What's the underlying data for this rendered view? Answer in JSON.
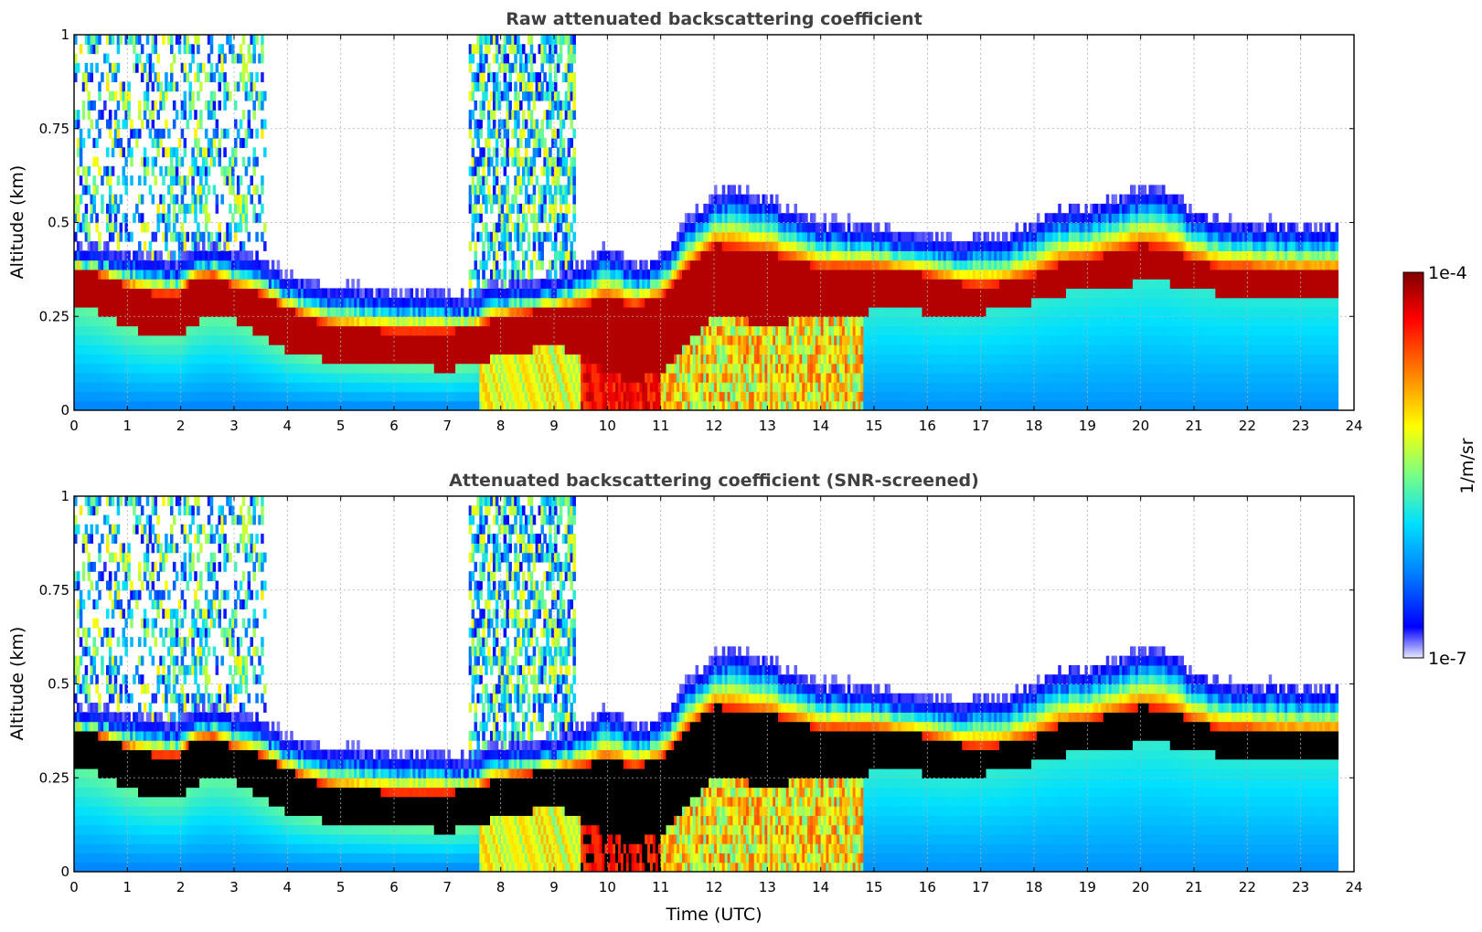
{
  "chart_data": [
    {
      "type": "heatmap",
      "title": "Raw attenuated backscattering coefficient",
      "xlabel": "",
      "ylabel": "Altitude (km)",
      "xlim": [
        0,
        24
      ],
      "ylim": [
        0,
        1
      ],
      "xticks": [
        0,
        1,
        2,
        3,
        4,
        5,
        6,
        7,
        8,
        9,
        10,
        11,
        12,
        13,
        14,
        15,
        16,
        17,
        18,
        19,
        20,
        21,
        22,
        23,
        24
      ],
      "yticks": [
        0,
        0.25,
        0.5,
        0.75,
        1
      ],
      "ytick_labels": [
        "0",
        "0.25",
        "0.5",
        "0.75",
        "1"
      ],
      "grid": true,
      "data_end_time": 23.7,
      "layer_top_km": {
        "time": [
          0,
          0.5,
          1,
          1.5,
          2,
          2.2,
          2.6,
          3,
          3.5,
          4,
          4.5,
          5,
          6,
          7,
          7.5,
          8,
          9,
          9.5,
          10,
          10.5,
          11,
          11.5,
          12,
          12.5,
          13,
          13.5,
          14,
          14.5,
          15,
          15.5,
          16,
          16.5,
          17,
          17.5,
          18,
          18.5,
          19,
          19.5,
          20,
          20.5,
          21,
          21.5,
          22,
          22.5,
          23,
          23.7
        ],
        "value": [
          0.41,
          0.4,
          0.38,
          0.37,
          0.36,
          0.4,
          0.4,
          0.38,
          0.36,
          0.32,
          0.3,
          0.29,
          0.28,
          0.27,
          0.27,
          0.3,
          0.32,
          0.35,
          0.4,
          0.35,
          0.37,
          0.47,
          0.54,
          0.55,
          0.53,
          0.49,
          0.46,
          0.46,
          0.45,
          0.44,
          0.43,
          0.42,
          0.42,
          0.43,
          0.46,
          0.5,
          0.5,
          0.53,
          0.55,
          0.55,
          0.49,
          0.47,
          0.46,
          0.46,
          0.45,
          0.45
        ]
      },
      "layer_core_km": {
        "time": [
          0,
          0.5,
          1,
          1.5,
          2,
          2.2,
          2.6,
          3,
          3.5,
          4,
          4.5,
          5,
          6,
          7,
          7.5,
          8,
          9,
          9.5,
          10,
          10.5,
          11,
          11.5,
          12,
          12.5,
          13,
          13.5,
          14,
          14.5,
          15,
          15.5,
          16,
          16.5,
          17,
          17.5,
          18,
          18.5,
          19,
          19.5,
          20,
          20.5,
          21,
          21.5,
          22,
          22.5,
          23,
          23.7
        ],
        "top": [
          0.38,
          0.36,
          0.33,
          0.31,
          0.31,
          0.35,
          0.36,
          0.33,
          0.31,
          0.27,
          0.24,
          0.22,
          0.21,
          0.21,
          0.22,
          0.25,
          0.27,
          0.28,
          0.3,
          0.28,
          0.3,
          0.38,
          0.44,
          0.43,
          0.42,
          0.4,
          0.38,
          0.38,
          0.38,
          0.37,
          0.36,
          0.34,
          0.33,
          0.34,
          0.36,
          0.39,
          0.4,
          0.42,
          0.44,
          0.43,
          0.4,
          0.38,
          0.38,
          0.37,
          0.37,
          0.37
        ],
        "bottom": [
          0.28,
          0.26,
          0.22,
          0.2,
          0.2,
          0.23,
          0.25,
          0.24,
          0.2,
          0.16,
          0.14,
          0.13,
          0.12,
          0.11,
          0.12,
          0.15,
          0.17,
          0.15,
          0.1,
          0.08,
          0.1,
          0.18,
          0.25,
          0.24,
          0.23,
          0.24,
          0.25,
          0.24,
          0.27,
          0.27,
          0.26,
          0.25,
          0.26,
          0.27,
          0.29,
          0.31,
          0.32,
          0.33,
          0.34,
          0.34,
          0.32,
          0.31,
          0.31,
          0.31,
          0.31,
          0.31
        ]
      }
    },
    {
      "type": "heatmap",
      "title": "Attenuated backscattering coefficient (SNR-screened)",
      "xlabel": "Time (UTC)",
      "ylabel": "Altitude (km)",
      "xlim": [
        0,
        24
      ],
      "ylim": [
        0,
        1
      ],
      "xticks": [
        0,
        1,
        2,
        3,
        4,
        5,
        6,
        7,
        8,
        9,
        10,
        11,
        12,
        13,
        14,
        15,
        16,
        17,
        18,
        19,
        20,
        21,
        22,
        23,
        24
      ],
      "yticks": [
        0,
        0.25,
        0.5,
        0.75,
        1
      ],
      "ytick_labels": [
        "0",
        "0.25",
        "0.5",
        "0.75",
        "1"
      ],
      "grid": true,
      "data_end_time": 23.7,
      "screened_color": "#000000"
    }
  ],
  "colorbar": {
    "label": "1/m/sr",
    "min_label": "1e-7",
    "max_label": "1e-4",
    "vmin": 1e-07,
    "vmax": 0.0001,
    "scale": "log",
    "colormap": "jet",
    "colors": [
      "#e8e8ff",
      "#0000ff",
      "#0080ff",
      "#00e0ff",
      "#7fff7f",
      "#ffff00",
      "#ff8000",
      "#ff0000",
      "#800000"
    ]
  }
}
